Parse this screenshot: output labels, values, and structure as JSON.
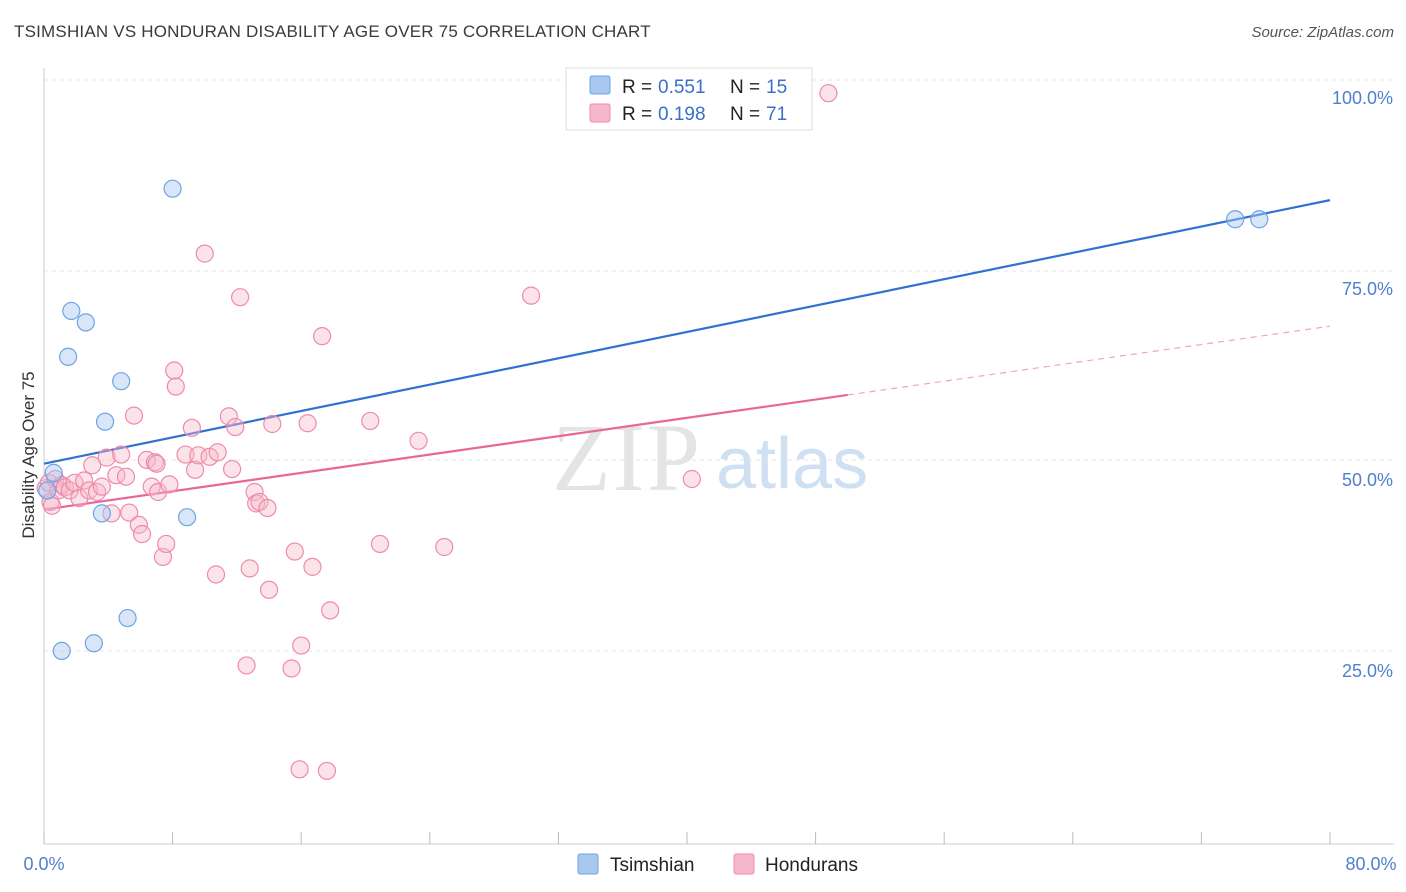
{
  "header": {
    "title": "TSIMSHIAN VS HONDURAN DISABILITY AGE OVER 75 CORRELATION CHART",
    "source": "Source: ZipAtlas.com"
  },
  "watermark": {
    "zip": "ZIP",
    "atlas": "atlas"
  },
  "legend": {
    "rows": [
      {
        "r_label": "R =",
        "r_value": "0.551",
        "n_label": "N =",
        "n_value": "15",
        "color": "#a9c8f0"
      },
      {
        "r_label": "R =",
        "r_value": "0.198",
        "n_label": "N =",
        "n_value": "71",
        "color": "#f5b8ca"
      }
    ]
  },
  "bottom_legend": {
    "items": [
      {
        "label": "Tsimshian"
      },
      {
        "label": "Hondurans"
      }
    ]
  },
  "chart_data": {
    "type": "scatter",
    "title": "TSIMSHIAN VS HONDURAN DISABILITY AGE OVER 75 CORRELATION CHART",
    "xlabel": "",
    "ylabel": "Disability Age Over 75",
    "xlim": [
      0,
      80
    ],
    "ylim": [
      0,
      105
    ],
    "x_tick_labels": [
      "0.0%",
      "80.0%"
    ],
    "y_ticks": [
      25,
      50,
      75,
      100
    ],
    "y_tick_labels": [
      "25.0%",
      "50.0%",
      "75.0%",
      "100.0%"
    ],
    "grid": "horizontal dashed",
    "legend_position": "top-center",
    "colors": {
      "tsimshian": "#6ea3e6",
      "tsimshian_line": "#2f72d0",
      "hondurans": "#f08aaa",
      "hondurans_line": "#e8679a"
    },
    "series": [
      {
        "name": "Tsimshian",
        "points": [
          [
            0.2,
            48.5
          ],
          [
            0.6,
            50.8
          ],
          [
            1.1,
            27.5
          ],
          [
            1.7,
            72
          ],
          [
            2.6,
            70.5
          ],
          [
            1.5,
            66
          ],
          [
            4.8,
            62.8
          ],
          [
            3.6,
            45.5
          ],
          [
            3.8,
            57.5
          ],
          [
            3.1,
            28.5
          ],
          [
            5.2,
            31.8
          ],
          [
            8.0,
            88
          ],
          [
            8.9,
            45
          ],
          [
            74.1,
            84
          ],
          [
            75.6,
            84
          ]
        ],
        "trend": {
          "x1": 0,
          "y1": 52,
          "x2": 80,
          "y2": 86.5,
          "style": "solid"
        }
      },
      {
        "name": "Hondurans",
        "points": [
          [
            0.1,
            48.8
          ],
          [
            0.3,
            49.5
          ],
          [
            0.4,
            47
          ],
          [
            0.5,
            46.5
          ],
          [
            0.7,
            50
          ],
          [
            0.9,
            48.5
          ],
          [
            1.1,
            49.2
          ],
          [
            1.3,
            48.9
          ],
          [
            1.6,
            48.5
          ],
          [
            1.9,
            49.5
          ],
          [
            2.2,
            47.5
          ],
          [
            2.5,
            49.8
          ],
          [
            2.8,
            48.5
          ],
          [
            3.0,
            51.8
          ],
          [
            3.3,
            48.3
          ],
          [
            3.6,
            49
          ],
          [
            3.9,
            52.8
          ],
          [
            4.2,
            45.5
          ],
          [
            4.5,
            50.5
          ],
          [
            4.8,
            53.2
          ],
          [
            5.1,
            50.3
          ],
          [
            5.3,
            45.6
          ],
          [
            5.6,
            58.3
          ],
          [
            5.9,
            44
          ],
          [
            6.1,
            42.8
          ],
          [
            6.4,
            52.5
          ],
          [
            6.7,
            49
          ],
          [
            6.9,
            52.2
          ],
          [
            7.1,
            48.3
          ],
          [
            7.4,
            39.8
          ],
          [
            7.6,
            41.5
          ],
          [
            7.8,
            49.3
          ],
          [
            8.1,
            64.2
          ],
          [
            8.2,
            62.1
          ],
          [
            8.8,
            53.2
          ],
          [
            9.2,
            56.7
          ],
          [
            9.4,
            51.2
          ],
          [
            9.6,
            53.1
          ],
          [
            10.0,
            79.5
          ],
          [
            10.3,
            52.9
          ],
          [
            10.7,
            37.5
          ],
          [
            10.8,
            53.5
          ],
          [
            11.5,
            58.2
          ],
          [
            11.7,
            51.3
          ],
          [
            11.9,
            56.8
          ],
          [
            12.2,
            73.8
          ],
          [
            12.6,
            25.6
          ],
          [
            12.8,
            38.3
          ],
          [
            13.1,
            48.3
          ],
          [
            13.2,
            46.8
          ],
          [
            13.4,
            47
          ],
          [
            13.9,
            46.2
          ],
          [
            14.0,
            35.5
          ],
          [
            14.2,
            57.2
          ],
          [
            15.4,
            25.2
          ],
          [
            15.6,
            40.5
          ],
          [
            15.9,
            12
          ],
          [
            16.0,
            28.2
          ],
          [
            16.4,
            57.3
          ],
          [
            16.7,
            38.5
          ],
          [
            17.3,
            68.7
          ],
          [
            17.6,
            11.8
          ],
          [
            17.8,
            32.8
          ],
          [
            20.3,
            57.6
          ],
          [
            20.9,
            41.5
          ],
          [
            23.3,
            55
          ],
          [
            24.9,
            41.1
          ],
          [
            30.3,
            74
          ],
          [
            40.3,
            50
          ],
          [
            48.8,
            100.5
          ],
          [
            7.0,
            52
          ]
        ],
        "trend": {
          "x1": 0,
          "y1": 46,
          "x2": 50,
          "y2": 61,
          "x3": 80,
          "y3": 70,
          "style": "solid-then-dashed"
        }
      }
    ]
  }
}
